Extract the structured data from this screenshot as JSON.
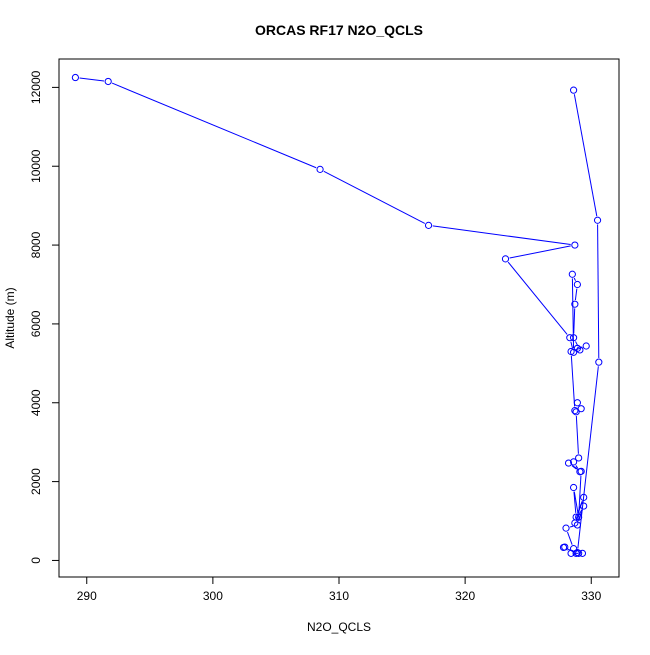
{
  "chart_data": {
    "type": "line",
    "title": "ORCAS RF17 N2O_QCLS",
    "xlabel": "N2O_QCLS",
    "ylabel": "Altitude (m)",
    "xlim": [
      287.8,
      332.2
    ],
    "ylim": [
      -420,
      12720
    ],
    "xticks": [
      290,
      300,
      310,
      320,
      330
    ],
    "yticks": [
      0,
      2000,
      4000,
      6000,
      8000,
      10000,
      12000
    ],
    "grid": false,
    "colors": {
      "series": "#0000ff",
      "axes": "#000000"
    },
    "series": [
      {
        "name": "",
        "marker": "open-circle",
        "x": [
          289.1,
          291.7,
          308.5,
          317.1,
          328.7,
          323.2,
          328.3,
          328.6,
          328.5,
          328.9,
          328.7,
          328.6,
          329.1,
          328.9,
          329.6,
          328.4,
          328.7,
          328.9,
          329.2,
          328.8,
          329.0,
          328.6,
          329.1,
          328.2,
          329.2,
          329.0,
          328.6,
          328.8,
          329.4,
          328.7,
          329.4,
          328.9,
          328.0,
          328.6,
          329.0,
          327.8,
          327.9,
          328.4,
          329.3,
          328.8,
          328.9,
          330.6,
          330.5,
          328.6
        ],
        "y": [
          12250,
          12150,
          9920,
          8500,
          8000,
          7650,
          5650,
          5280,
          7260,
          7000,
          6500,
          5650,
          5340,
          5380,
          5440,
          5300,
          3800,
          4000,
          3850,
          3770,
          2600,
          2500,
          2250,
          2470,
          2260,
          1100,
          1850,
          1100,
          1600,
          950,
          1380,
          900,
          820,
          300,
          180,
          330,
          340,
          180,
          180,
          180,
          200,
          5030,
          8630,
          11930
        ]
      }
    ]
  }
}
